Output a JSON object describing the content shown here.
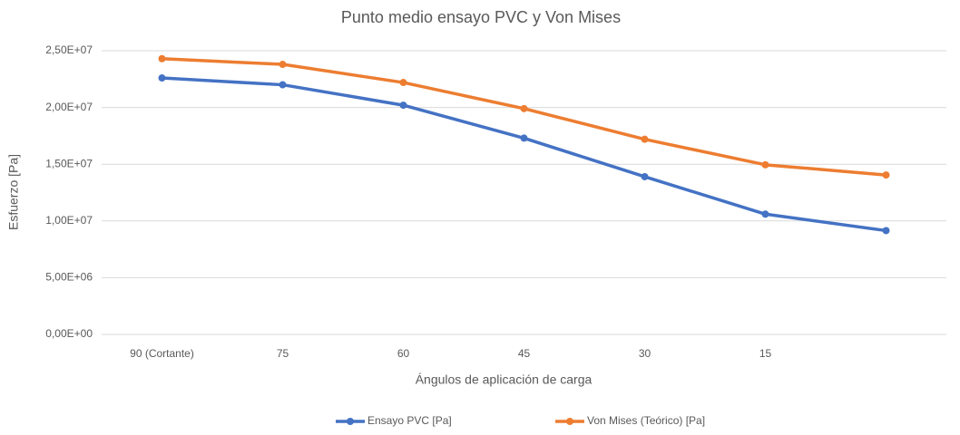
{
  "chart_data": {
    "type": "line",
    "title": "Punto medio ensayo PVC y Von Mises",
    "x_label": "Ángulos de aplicación de carga",
    "y_label": "Esfuerzo [Pa]",
    "categories": [
      "90 (Cortante)",
      "75",
      "60",
      "45",
      "30",
      "15",
      null
    ],
    "series": [
      {
        "name": "Ensayo PVC [Pa]",
        "color": "#4472c4",
        "values": [
          22600000,
          22000000,
          20200000,
          17300000,
          13900000,
          10600000,
          9150000
        ]
      },
      {
        "name": "Von Mises (Teórico) [Pa]",
        "color": "#ed7d31",
        "values": [
          24300000,
          23800000,
          22200000,
          19900000,
          17200000,
          14950000,
          14050000
        ]
      }
    ],
    "ylim": [
      0,
      25000000
    ],
    "yticks": [
      {
        "value": 0,
        "label": "0,00E+00"
      },
      {
        "value": 5000000,
        "label": "5,00E+06"
      },
      {
        "value": 10000000,
        "label": "1,00E+07"
      },
      {
        "value": 15000000,
        "label": "1,50E+07"
      },
      {
        "value": 20000000,
        "label": "2,00E+07"
      },
      {
        "value": 25000000,
        "label": "2,50E+07"
      }
    ],
    "grid": true,
    "legend": "bottom"
  }
}
